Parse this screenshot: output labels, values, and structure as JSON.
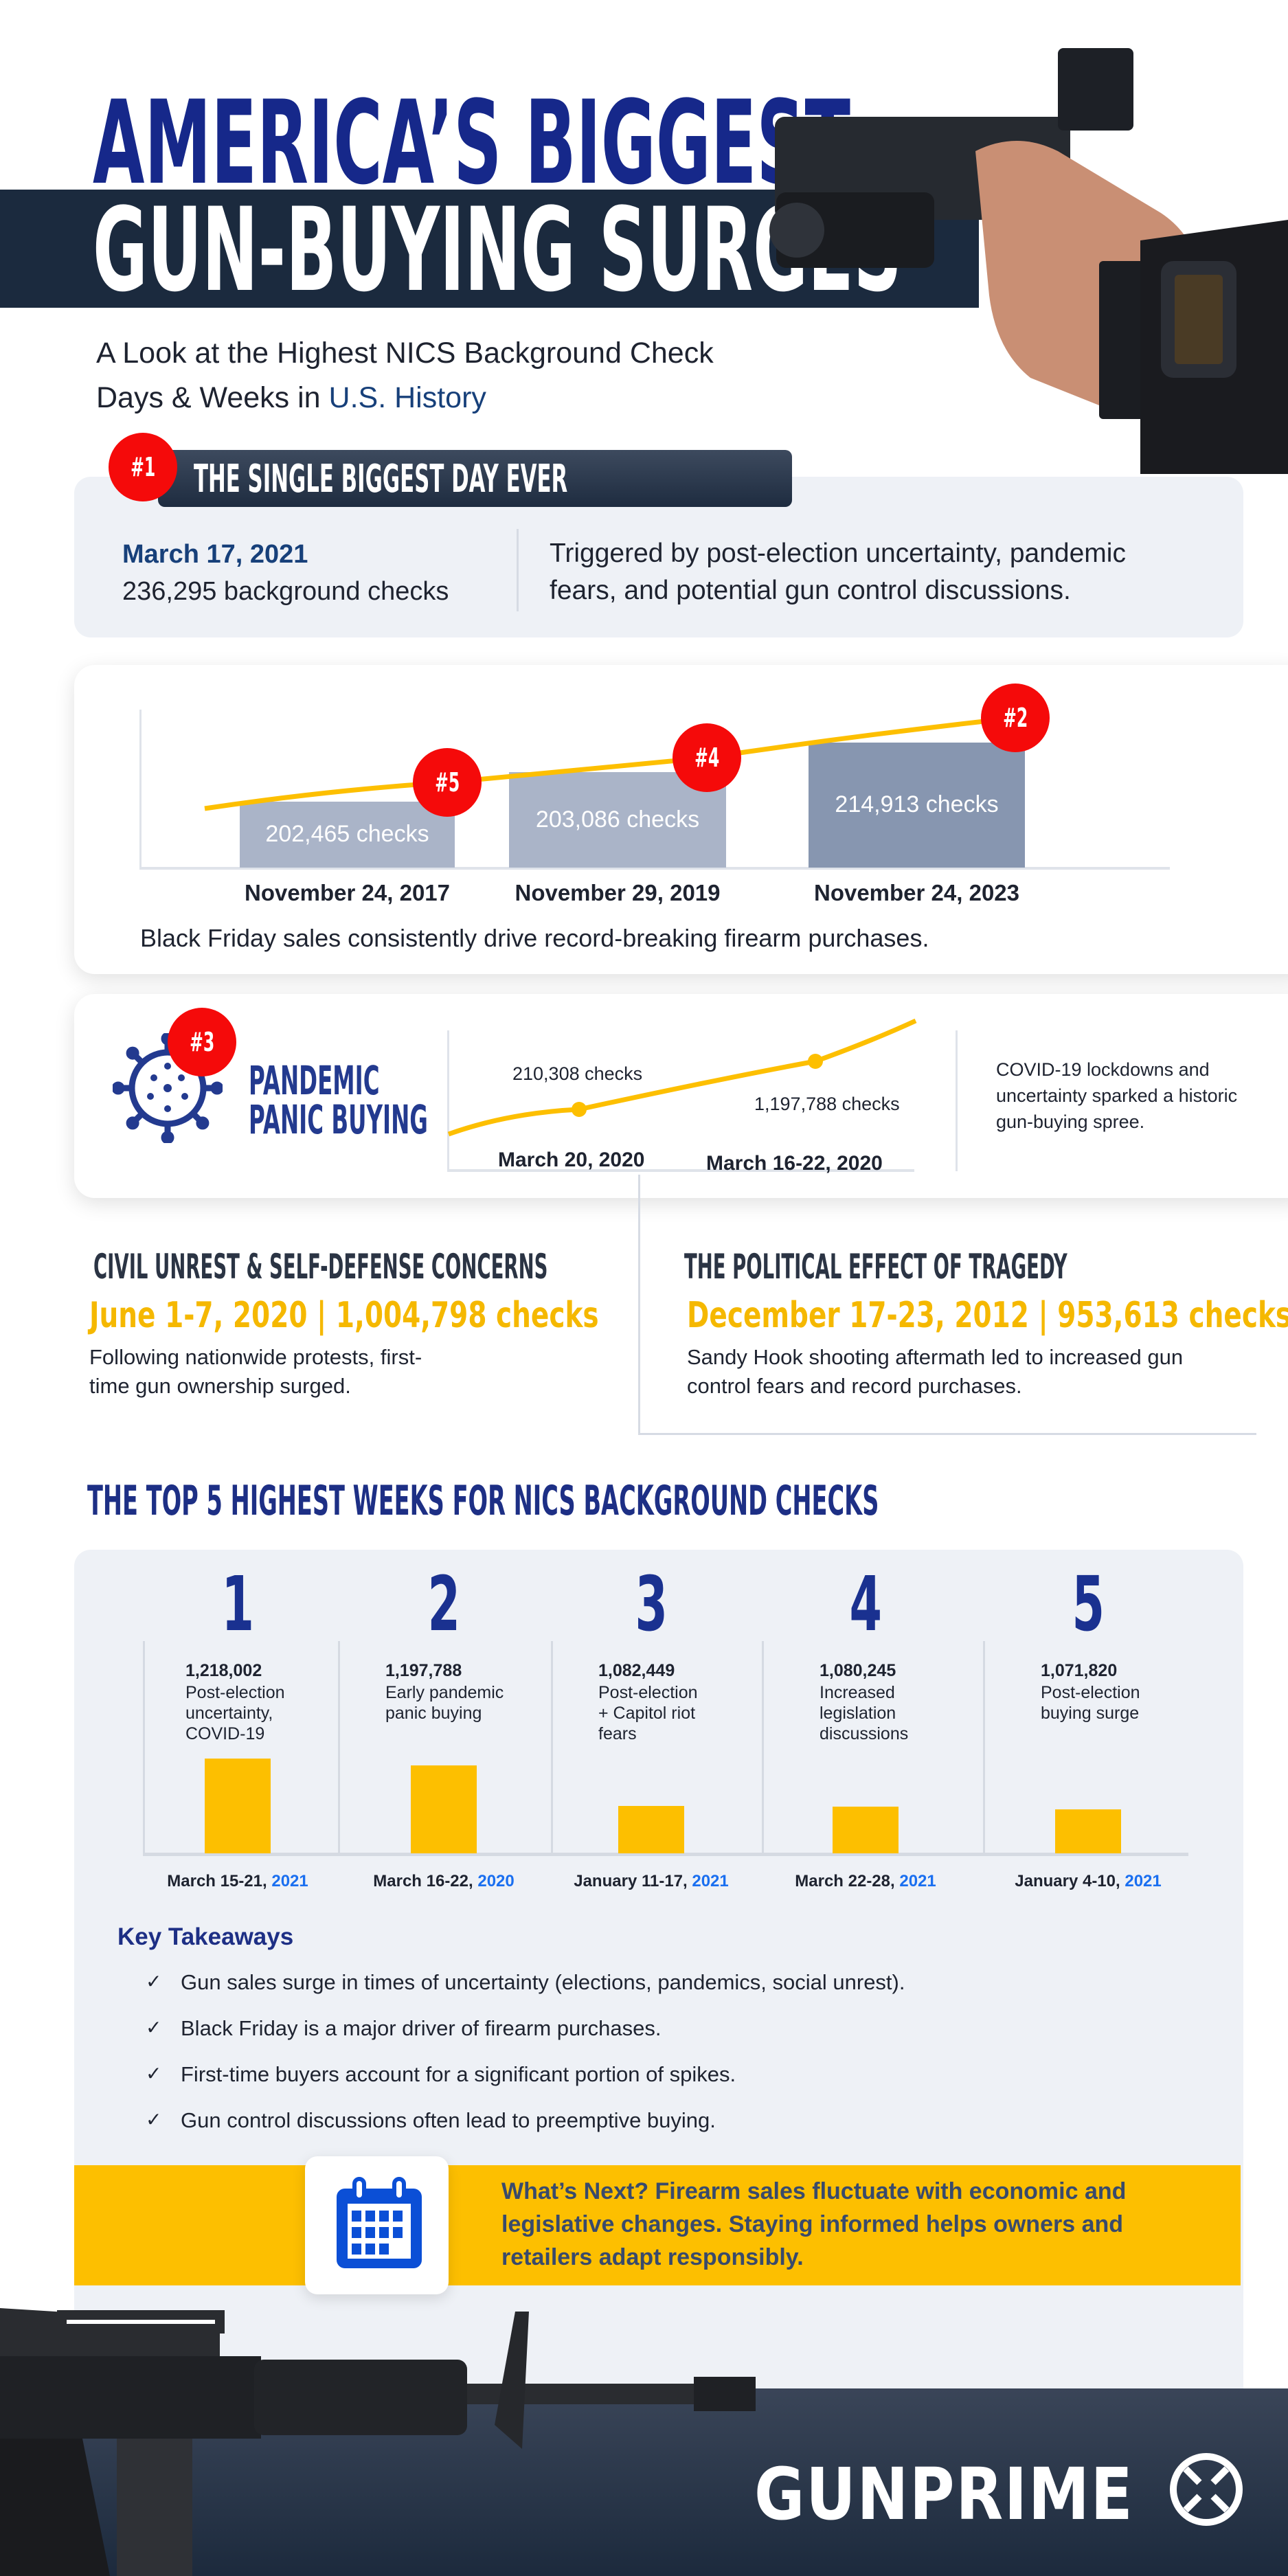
{
  "header": {
    "title_line1": "AMERICA’S BIGGEST",
    "title_line2": "GUN-BUYING SURGES",
    "subtitle_line1": "A Look at the Highest NICS Background Check",
    "subtitle_line2_prefix": "Days & Weeks in ",
    "subtitle_line2_highlight": "U.S. History"
  },
  "biggest_day": {
    "rank": "#1",
    "heading": "THE SINGLE BIGGEST DAY EVER",
    "date": "March 17, 2021",
    "checks": "236,295 background checks",
    "description_line1": "Triggered by post-election uncertainty, pandemic",
    "description_line2": "fears, and potential gun control discussions."
  },
  "black_friday": {
    "items": [
      {
        "rank": "#5",
        "checks": "202,465  checks",
        "date": "November 24, 2017",
        "value": 202465
      },
      {
        "rank": "#4",
        "checks": "203,086 checks",
        "date": "November 29, 2019",
        "value": 203086
      },
      {
        "rank": "#2",
        "checks": "214,913 checks",
        "date": "November 24, 2023",
        "value": 214913
      }
    ],
    "caption": "Black Friday sales consistently drive record-breaking firearm purchases."
  },
  "pandemic": {
    "rank": "#3",
    "title_line1": "PANDEMIC",
    "title_line2": "PANIC BUYING",
    "point1_label": "210,308 checks",
    "point1_date": "March 20, 2020",
    "point2_label": "1,197,788 checks",
    "point2_date": "March 16-22, 2020",
    "description_line1": "COVID-19 lockdowns and",
    "description_line2": "uncertainty sparked a historic",
    "description_line3": "gun-buying spree."
  },
  "civil_unrest": {
    "heading": "CIVIL UNREST & SELF-DEFENSE CONCERNS",
    "stat": "June 1-7, 2020 | 1,004,798 checks",
    "body_line1": "Following nationwide protests, first-",
    "body_line2": "time gun ownership surged."
  },
  "tragedy": {
    "heading": "THE POLITICAL EFFECT OF TRAGEDY",
    "stat": "December 17-23, 2012 | 953,613 checks",
    "body_line1": "Sandy Hook shooting aftermath led to increased gun",
    "body_line2": "control fears and record purchases."
  },
  "top5": {
    "heading": "THE TOP 5 HIGHEST WEEKS FOR NICS BACKGROUND CHECKS",
    "weeks": [
      {
        "rank": "1",
        "checks": "1,218,002",
        "value": 1218002,
        "desc": [
          "Post-election",
          "uncertainty,",
          "COVID-19"
        ],
        "date": "March 15-21, ",
        "year": "2021"
      },
      {
        "rank": "2",
        "checks": "1,197,788",
        "value": 1197788,
        "desc": [
          "Early pandemic",
          "panic buying"
        ],
        "date": "March 16-22, ",
        "year": "2020"
      },
      {
        "rank": "3",
        "checks": "1,082,449",
        "value": 1082449,
        "desc": [
          "Post-election",
          "+ Capitol riot",
          "fears"
        ],
        "date": "January 11-17, ",
        "year": "2021"
      },
      {
        "rank": "4",
        "checks": "1,080,245",
        "value": 1080245,
        "desc": [
          "Increased",
          "legislation",
          "discussions"
        ],
        "date": "March 22-28, ",
        "year": "2021"
      },
      {
        "rank": "5",
        "checks": "1,071,820",
        "value": 1071820,
        "desc": [
          "Post-election",
          "buying surge"
        ],
        "date": "January 4-10, ",
        "year": "2021"
      }
    ]
  },
  "takeaways": {
    "heading": "Key Takeaways",
    "check_glyph": "✓",
    "items": [
      "Gun sales surge in times of uncertainty (elections, pandemics, social unrest).",
      "Black Friday is a major driver of firearm purchases.",
      "First-time buyers account for a significant portion of spikes.",
      "Gun control discussions often lead to preemptive buying."
    ]
  },
  "whats_next": {
    "icon": "calendar-icon",
    "line1": "What’s Next? Firearm sales fluctuate with economic and",
    "line2": "legislative changes. Staying informed helps owners and",
    "line3": "retailers adapt responsibly."
  },
  "footer": {
    "brand": "GUNPRIME"
  },
  "colors": {
    "navy": "#1d2f85",
    "dark_band": "#1b2a3e",
    "yellow": "#fdbf00",
    "red": "#f50a0a",
    "year_blue": "#1a6ff0"
  }
}
